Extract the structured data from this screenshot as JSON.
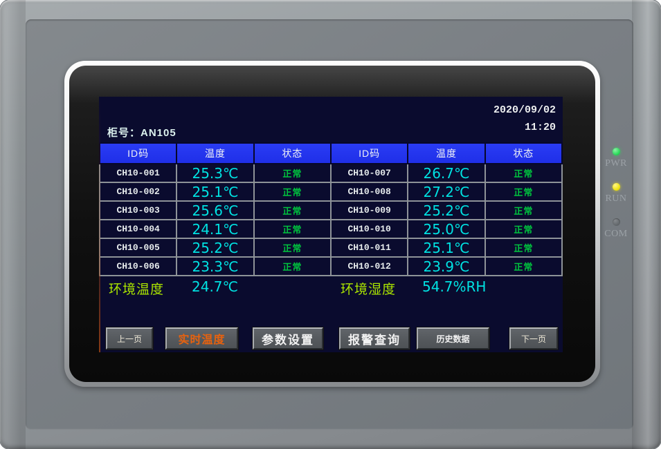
{
  "theme": {
    "lcd-bg": "#0a0b2e",
    "header-bg": "#1f2fe8",
    "temp-color": "#00e2e2",
    "status-ok": "#00c33e",
    "env-label": "#aae400",
    "nav-active": "#e8620e",
    "led-green": "#2edb5c",
    "led-yellow": "#f0e414",
    "led-off": "#62676b"
  },
  "device": {
    "leds": [
      {
        "label": "PWR",
        "state": "on"
      },
      {
        "label": "RUN",
        "state": "on"
      },
      {
        "label": "COM",
        "state": "off"
      }
    ]
  },
  "screen": {
    "date": "2020/09/02",
    "time": "11:20",
    "cabinet": {
      "label": "柜号：",
      "value": "AN105"
    },
    "table": {
      "headers": [
        "ID码",
        "温度",
        "状态",
        "ID码",
        "温度",
        "状态"
      ],
      "rows": [
        {
          "id1": "CH10-001",
          "temp1": "25.3℃",
          "status1": "正常",
          "id2": "CH10-007",
          "temp2": "26.7℃",
          "status2": "正常"
        },
        {
          "id1": "CH10-002",
          "temp1": "25.1℃",
          "status1": "正常",
          "id2": "CH10-008",
          "temp2": "27.2℃",
          "status2": "正常"
        },
        {
          "id1": "CH10-003",
          "temp1": "25.6℃",
          "status1": "正常",
          "id2": "CH10-009",
          "temp2": "25.2℃",
          "status2": "正常"
        },
        {
          "id1": "CH10-004",
          "temp1": "24.1℃",
          "status1": "正常",
          "id2": "CH10-010",
          "temp2": "25.0℃",
          "status2": "正常"
        },
        {
          "id1": "CH10-005",
          "temp1": "25.2℃",
          "status1": "正常",
          "id2": "CH10-011",
          "temp2": "25.1℃",
          "status2": "正常"
        },
        {
          "id1": "CH10-006",
          "temp1": "23.3℃",
          "status1": "正常",
          "id2": "CH10-012",
          "temp2": "23.9℃",
          "status2": "正常"
        }
      ]
    },
    "environment": {
      "temp_label": "环境温度",
      "temp_value": "24.7℃",
      "humidity_label": "环境湿度",
      "humidity_value": "54.7%RH"
    },
    "nav": {
      "prev": "上一页",
      "realtime": "实时温度",
      "params": "参数设置",
      "alarm": "报警查询",
      "history": "历史数据",
      "next": "下一页"
    }
  }
}
